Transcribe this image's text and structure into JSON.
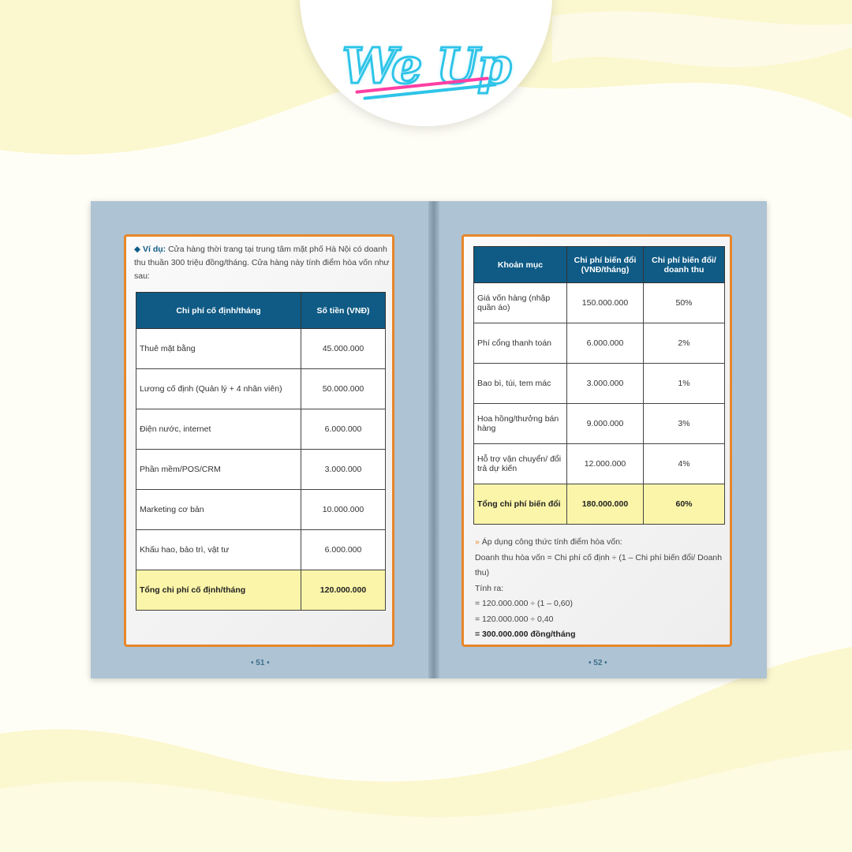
{
  "logo": {
    "text": "We Up"
  },
  "left_page": {
    "intro_label": "Ví dụ:",
    "intro_text": "Cửa hàng thời trang tại trung tâm mặt phố Hà Nội có doanh thu thuần 300 triệu đồng/tháng. Cửa hàng này tính điểm hòa vốn như sau:",
    "table": {
      "headers": [
        "Chi phí cố định/tháng",
        "Số tiền (VNĐ)"
      ],
      "rows": [
        [
          "Thuê mặt bằng",
          "45.000.000"
        ],
        [
          "Lương cố định (Quản lý + 4 nhân viên)",
          "50.000.000"
        ],
        [
          "Điện nước, internet",
          "6.000.000"
        ],
        [
          "Phần mềm/POS/CRM",
          "3.000.000"
        ],
        [
          "Marketing cơ bản",
          "10.000.000"
        ],
        [
          "Khấu hao, bảo trì, vật tư",
          "6.000.000"
        ]
      ],
      "total": [
        "Tổng chi phí cố định/tháng",
        "120.000.000"
      ]
    },
    "page_number": "• 51 •"
  },
  "right_page": {
    "table": {
      "headers": [
        "Khoản mục",
        "Chi phí biến đổi (VNĐ/tháng)",
        "Chi phí biến đổi/ doanh thu"
      ],
      "rows": [
        [
          "Giá vốn hàng (nhập quần áo)",
          "150.000.000",
          "50%"
        ],
        [
          "Phí cổng thanh toán",
          "6.000.000",
          "2%"
        ],
        [
          "Bao bì, túi, tem mác",
          "3.000.000",
          "1%"
        ],
        [
          "Hoa hồng/thưởng bán hàng",
          "9.000.000",
          "3%"
        ],
        [
          "Hỗ trợ vận chuyển/ đổi trả dự kiến",
          "12.000.000",
          "4%"
        ]
      ],
      "total": [
        "Tổng chi phí biến đổi",
        "180.000.000",
        "60%"
      ]
    },
    "calc": {
      "heading": "Áp dụng công thức tính điểm hòa vốn:",
      "formula": "Doanh thu hòa vốn = Chi phí cố định ÷ (1 – Chi phí biến đổi/ Doanh thu)",
      "label": "Tính ra:",
      "step1": "= 120.000.000 ÷ (1 – 0,60)",
      "step2": "= 120.000.000 ÷ 0,40",
      "result": "= 300.000.000 đồng/tháng"
    },
    "page_number": "• 52 •"
  },
  "colors": {
    "accent": "#e8862a",
    "header": "#0f5b85",
    "total": "#fbf5a9",
    "book": "#aec3d3"
  }
}
